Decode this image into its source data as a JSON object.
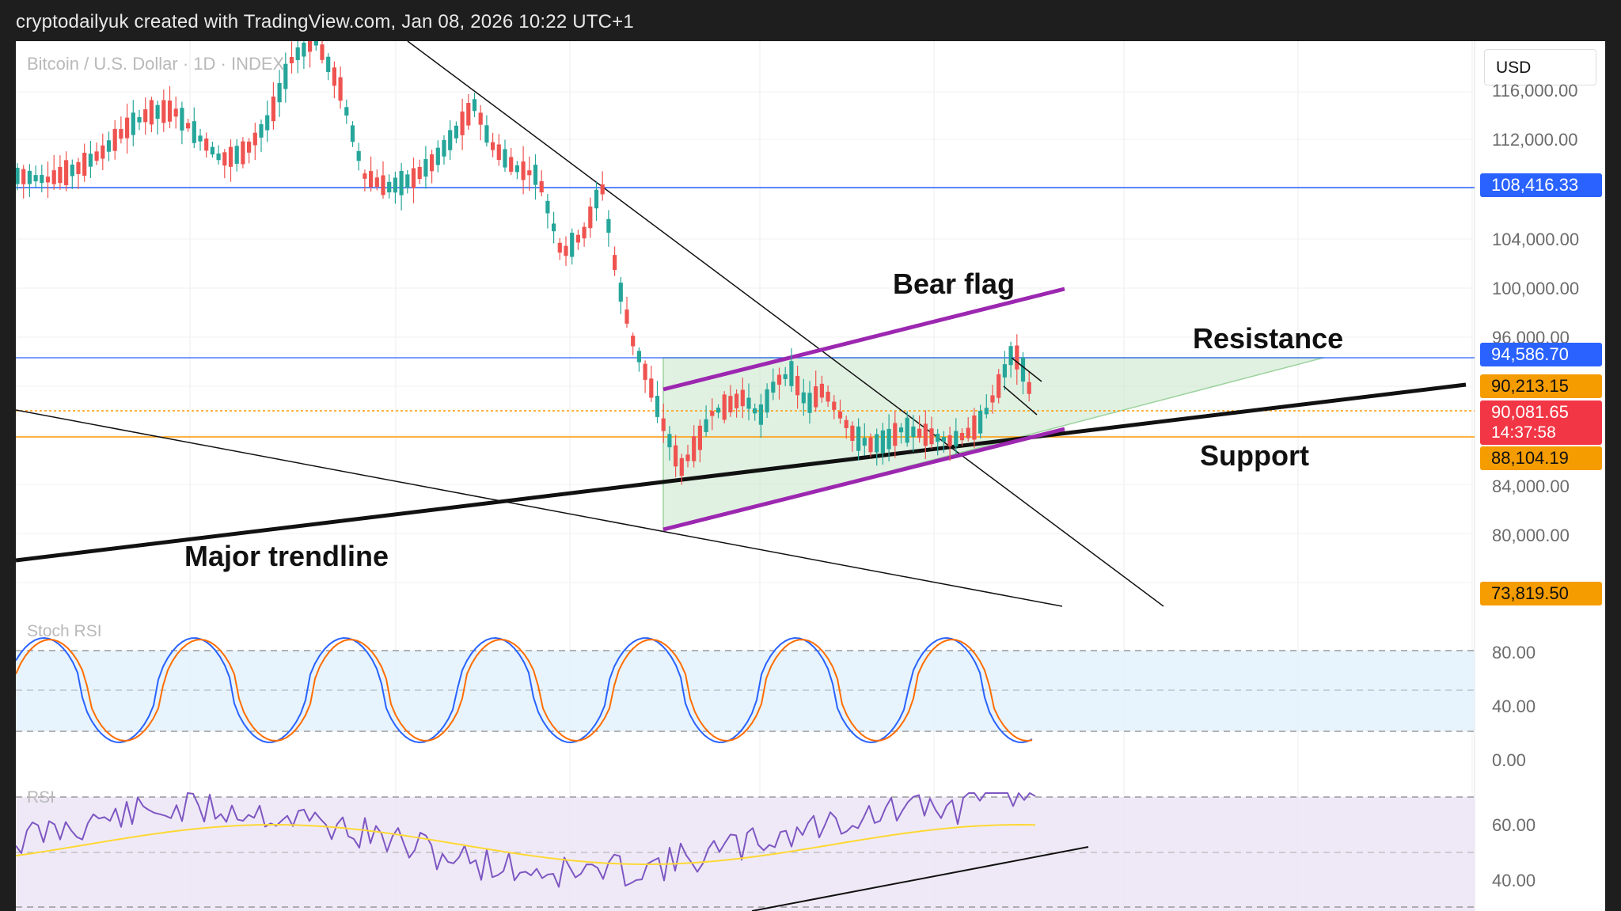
{
  "window": {
    "title": "cryptodailyuk created with TradingView.com, Jan 08, 2026 10:22 UTC+1"
  },
  "symbol": {
    "label": "Bitcoin / U.S. Dollar · 1D · INDEX"
  },
  "currency": {
    "value": "USD"
  },
  "colors": {
    "up": "#26a69a",
    "down": "#ef5350",
    "blue_line": "#2962ff",
    "orange_line": "#ff9800",
    "purple": "#9c27b0",
    "stoch_k": "#2962ff",
    "stoch_d": "#ff6d00",
    "rsi_line": "#7e57c2",
    "rsi_ma": "#fdd835",
    "triangle_fill": "#c8e6c9",
    "triangle_stroke": "#4caf50"
  },
  "price_axis": {
    "ticks": [
      "116,000.00",
      "112,000.00",
      "104,000.00",
      "100,000.00",
      "96,000.00",
      "84,000.00",
      "80,000.00"
    ]
  },
  "price_labels": {
    "level_108": "108,416.33",
    "level_94": "94,586.70",
    "level_90a": "90,213.15",
    "current_price": "90,081.65",
    "countdown": "14:37:58",
    "level_88": "88,104.19",
    "level_73": "73,819.50"
  },
  "annotations": {
    "bear_flag": "Bear flag",
    "resistance": "Resistance",
    "support": "Support",
    "major_trendline": "Major trendline"
  },
  "stoch_rsi": {
    "title": "Stoch RSI",
    "ticks": [
      "80.00",
      "40.00",
      "0.00"
    ]
  },
  "rsi": {
    "title": "RSI",
    "ticks": [
      "60.00",
      "40.00"
    ]
  }
}
